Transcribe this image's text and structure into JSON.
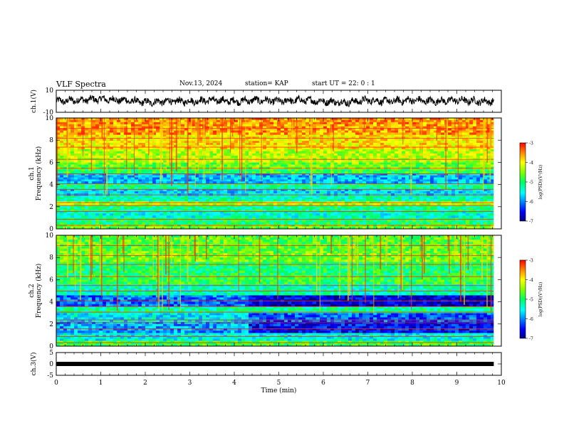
{
  "header": {
    "title": "VLF Spectra",
    "date": "Nov.13, 2024",
    "station": "station= KAP",
    "start": "start UT =  22: 0  : 1"
  },
  "chart_data": [
    {
      "type": "line",
      "panel": "ch1-waveform",
      "ylabel": "ch.1(V)",
      "ylim": [
        -10,
        10
      ],
      "yticks": [
        "10",
        "-10"
      ],
      "xlim": [
        0,
        10
      ],
      "data_end_min": 9.83,
      "series": [
        {
          "x": [
            0,
            0.5,
            1,
            1.5,
            2,
            2.5,
            3,
            3.5,
            4,
            4.5,
            5,
            5.5,
            6,
            6.5,
            7,
            7.5,
            8,
            8.5,
            9,
            9.5,
            9.83
          ],
          "values": [
            0,
            1,
            2,
            1,
            -1,
            0,
            0,
            1,
            0,
            1,
            0,
            1,
            0,
            -1,
            1,
            0,
            1,
            0,
            1,
            0,
            0
          ]
        }
      ]
    },
    {
      "type": "heatmap",
      "panel": "ch1-spectrogram",
      "ylabel": "ch.1 Frequency (kHz)",
      "ylim": [
        0,
        10
      ],
      "yticks": [
        "0",
        "2",
        "4",
        "6",
        "8",
        "10"
      ],
      "xlim": [
        0,
        10
      ],
      "data_end_min": 9.83,
      "colorbar": {
        "label": "log(PSD)(V²/Hz)",
        "range": [
          -7,
          -3
        ],
        "ticks": [
          "-3",
          "-4",
          "-5",
          "-6",
          "-7"
        ]
      },
      "bands": [
        {
          "f": [
            0.0,
            0.4
          ],
          "level": -4.6
        },
        {
          "f": [
            0.4,
            1.0
          ],
          "level": -5.0
        },
        {
          "f": [
            1.0,
            1.6
          ],
          "level": -5.4
        },
        {
          "f": [
            1.6,
            2.1
          ],
          "level": -5.1
        },
        {
          "f": [
            2.1,
            2.5
          ],
          "level": -4.3
        },
        {
          "f": [
            2.5,
            3.0
          ],
          "level": -5.3
        },
        {
          "f": [
            3.0,
            3.6
          ],
          "level": -5.7
        },
        {
          "f": [
            3.6,
            4.1
          ],
          "level": -5.2
        },
        {
          "f": [
            4.1,
            5.0
          ],
          "level": -5.8
        },
        {
          "f": [
            5.0,
            5.4
          ],
          "level": -4.9
        },
        {
          "f": [
            5.4,
            6.0
          ],
          "level": -4.6
        },
        {
          "f": [
            6.0,
            7.2
          ],
          "level": -4.3
        },
        {
          "f": [
            7.2,
            8.5
          ],
          "level": -3.9
        },
        {
          "f": [
            8.5,
            10.0
          ],
          "level": -3.6
        }
      ]
    },
    {
      "type": "heatmap",
      "panel": "ch2-spectrogram",
      "ylabel": "ch.2 Frequency (kHz)",
      "ylim": [
        0,
        10
      ],
      "yticks": [
        "0",
        "2",
        "4",
        "6",
        "8",
        "10"
      ],
      "xlim": [
        0,
        10
      ],
      "data_end_min": 9.83,
      "colorbar": {
        "label": "log(PSD)(V²/Hz)",
        "range": [
          -7,
          -3
        ],
        "ticks": [
          "-3",
          "-4",
          "-5",
          "-6",
          "-7"
        ]
      },
      "bands": [
        {
          "f": [
            0.0,
            0.5
          ],
          "level": -4.8
        },
        {
          "f": [
            0.5,
            1.2
          ],
          "level": -5.5
        },
        {
          "f": [
            1.2,
            2.2
          ],
          "level": -5.9
        },
        {
          "f": [
            2.2,
            3.0
          ],
          "level": -5.6
        },
        {
          "f": [
            3.0,
            3.6
          ],
          "level": -5.2
        },
        {
          "f": [
            3.6,
            4.6
          ],
          "level": -6.1
        },
        {
          "f": [
            4.6,
            5.6
          ],
          "level": -5.3
        },
        {
          "f": [
            5.6,
            6.4
          ],
          "level": -4.9
        },
        {
          "f": [
            6.4,
            7.6
          ],
          "level": -5.0
        },
        {
          "f": [
            7.6,
            8.6
          ],
          "level": -4.6
        },
        {
          "f": [
            8.6,
            10.0
          ],
          "level": -4.7
        }
      ]
    },
    {
      "type": "line",
      "panel": "ch3-waveform",
      "ylabel": "ch.3(V)",
      "ylim": [
        -5,
        5
      ],
      "yticks": [
        "5",
        "0",
        "-5"
      ],
      "xlim": [
        0,
        10
      ],
      "data_end_min": 9.83,
      "series": [
        {
          "x": [
            0,
            9.83
          ],
          "values": [
            0,
            0
          ]
        }
      ],
      "xlabel": "Time (min)",
      "xticks": [
        "0",
        "1",
        "2",
        "3",
        "4",
        "5",
        "6",
        "7",
        "8",
        "9",
        "10"
      ]
    }
  ]
}
